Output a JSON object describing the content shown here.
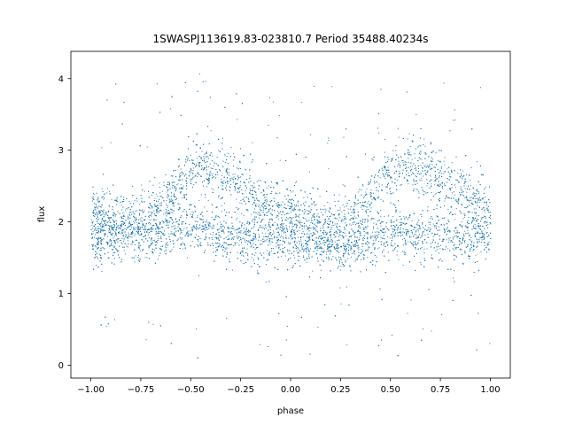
{
  "chart_data": {
    "type": "scatter",
    "title": "1SWASPJ113619.83-023810.7 Period 35488.40234s",
    "xlabel": "phase",
    "ylabel": "flux",
    "xlim": [
      -1.1,
      1.1
    ],
    "ylim": [
      -0.18,
      4.38
    ],
    "x_ticks": [
      -1.0,
      -0.75,
      -0.5,
      -0.25,
      0.0,
      0.25,
      0.5,
      0.75,
      1.0
    ],
    "x_tick_labels": [
      "−1.00",
      "−0.75",
      "−0.50",
      "−0.25",
      "0.00",
      "0.25",
      "0.50",
      "0.75",
      "1.00"
    ],
    "y_ticks": [
      0,
      1,
      2,
      3,
      4
    ],
    "y_tick_labels": [
      "0",
      "1",
      "2",
      "3",
      "4"
    ],
    "grid": false,
    "legend": "none",
    "marker_color": "#1f77b4",
    "series": [
      {
        "description_free_points": "phase-folded light curve, phase range -1 to 1, two sequences",
        "x": [],
        "y": []
      }
    ],
    "sequences": {
      "faint_branch": {
        "phase": [
          -1.0,
          -0.75,
          -0.5,
          -0.25,
          0.0,
          0.25,
          0.5,
          0.75,
          1.0
        ],
        "flux": [
          1.75,
          1.85,
          1.92,
          1.8,
          1.75,
          1.65,
          1.85,
          1.8,
          1.75
        ]
      },
      "bright_branch": {
        "phase": [
          -1.0,
          -0.8,
          -0.65,
          -0.55,
          -0.45,
          -0.3,
          -0.15,
          0.0,
          0.15,
          0.3,
          0.45,
          0.55,
          0.65,
          0.8,
          1.0
        ],
        "flux": [
          2.15,
          2.0,
          2.2,
          2.55,
          2.8,
          2.6,
          2.3,
          2.1,
          1.95,
          2.05,
          2.55,
          2.8,
          2.75,
          2.5,
          2.15
        ]
      }
    }
  }
}
